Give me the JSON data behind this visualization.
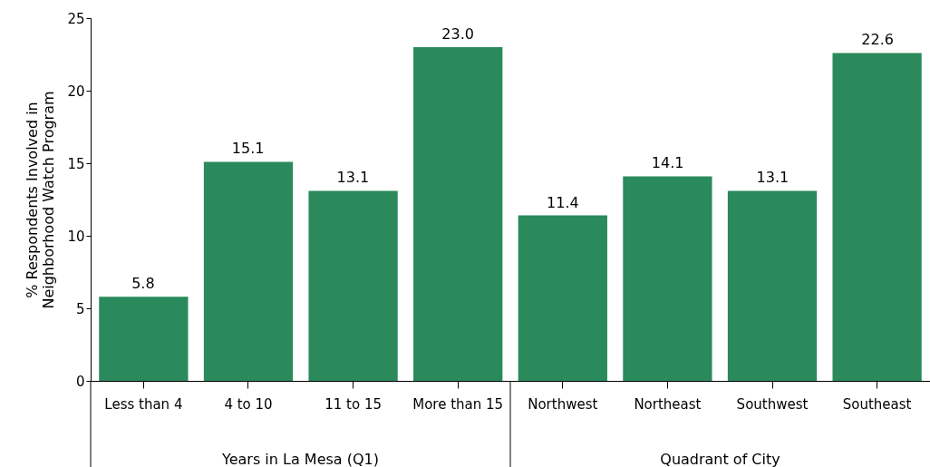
{
  "chart_data": {
    "type": "bar",
    "ylabel": "% Respondents Involved in Neighborhood Watch Program",
    "categories": [
      "Less than 4",
      "4 to 10",
      "11 to 15",
      "More than 15",
      "Northwest",
      "Northeast",
      "Southwest",
      "Southeast"
    ],
    "values": [
      5.8,
      15.1,
      13.1,
      23.0,
      11.4,
      14.1,
      13.1,
      22.6
    ],
    "color": "#2a8a5c",
    "ylim": [
      0,
      25
    ],
    "yticks": [
      0,
      5,
      10,
      15,
      20,
      25
    ],
    "grid": false,
    "value_labels": [
      "5.8",
      "15.1",
      "13.1",
      "23.0",
      "11.4",
      "14.1",
      "13.1",
      "22.6"
    ],
    "annotations": [
      "Years in La Mesa (Q1)",
      "Quadrant of City"
    ]
  }
}
